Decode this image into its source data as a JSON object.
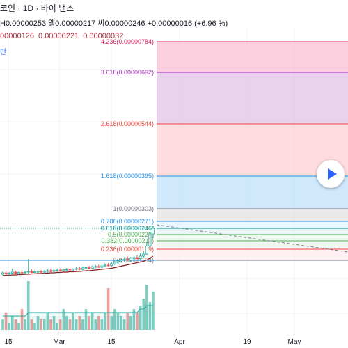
{
  "header": {
    "title": "코인 · 1D · 바이 낸스",
    "ohlc": {
      "high": "H0.00000253",
      "open_close_label": "엘0.00000217",
      "close": "씨0.00000246",
      "change": "+0.00000016 (+6.96 %)"
    },
    "ma_values": [
      "00000126",
      "0.00000221",
      "0.00000032"
    ],
    "indicator_label": "반"
  },
  "colors": {
    "up": "#26a69a",
    "down": "#ef5350",
    "ma": "#8b1a1a",
    "volume_up": "#7fcfc3",
    "volume_down": "#f29e9c",
    "accent": "#2962ff"
  },
  "play_button": {
    "icon": "play-icon"
  },
  "chart_data": {
    "type": "candlestick",
    "x_ticks": [
      "15",
      "Mar",
      "15",
      "Apr",
      "19",
      "May"
    ],
    "fib_levels": [
      {
        "ratio": "4.236",
        "price": "0.00000784",
        "color": "#e91e63",
        "fill": "#f8bbd0"
      },
      {
        "ratio": "3.618",
        "price": "0.00000692",
        "color": "#9c27b0",
        "fill": "#e1bee7"
      },
      {
        "ratio": "2.618",
        "price": "0.00000544",
        "color": "#f44336",
        "fill": "#ffcdd2"
      },
      {
        "ratio": "1.618",
        "price": "0.00000395",
        "color": "#2196f3",
        "fill": "#bbdefb"
      },
      {
        "ratio": "1",
        "price": "0.00000303",
        "color": "#787b86",
        "fill": "#e0e0e0"
      },
      {
        "ratio": "0.786",
        "price": "0.00000271",
        "color": "#2196f3",
        "fill": "#e3f2fd"
      },
      {
        "ratio": "0.618",
        "price": "0.00000246",
        "color": "#009688",
        "fill": "#e0f2f1"
      },
      {
        "ratio": "0.5",
        "price": "0.00000228",
        "color": "#4caf50",
        "fill": "#e8f5e9"
      },
      {
        "ratio": "0.382",
        "price": "0.00000211",
        "color": "#4caf50",
        "fill": "#e8f5e9"
      },
      {
        "ratio": "0.236",
        "price": "0.00000189",
        "color": "#f44336",
        "fill": "#ffebee"
      },
      {
        "ratio": "0",
        "price": "0.00000154",
        "color": "#787b86",
        "fill": "#ffffff"
      }
    ],
    "candles": [
      {
        "o": 1.14,
        "h": 1.22,
        "l": 1.1,
        "c": 1.18
      },
      {
        "o": 1.18,
        "h": 1.24,
        "l": 1.12,
        "c": 1.15
      },
      {
        "o": 1.15,
        "h": 1.2,
        "l": 1.1,
        "c": 1.17
      },
      {
        "o": 1.17,
        "h": 1.3,
        "l": 1.15,
        "c": 1.2
      },
      {
        "o": 1.2,
        "h": 1.24,
        "l": 1.14,
        "c": 1.16
      },
      {
        "o": 1.16,
        "h": 1.22,
        "l": 1.12,
        "c": 1.19
      },
      {
        "o": 1.19,
        "h": 1.26,
        "l": 1.15,
        "c": 1.18
      },
      {
        "o": 1.18,
        "h": 1.23,
        "l": 1.14,
        "c": 1.2
      },
      {
        "o": 1.2,
        "h": 1.58,
        "l": 1.16,
        "c": 1.22
      },
      {
        "o": 1.22,
        "h": 1.28,
        "l": 1.17,
        "c": 1.19
      },
      {
        "o": 1.19,
        "h": 1.25,
        "l": 1.15,
        "c": 1.21
      },
      {
        "o": 1.21,
        "h": 1.27,
        "l": 1.17,
        "c": 1.22
      },
      {
        "o": 1.22,
        "h": 1.26,
        "l": 1.18,
        "c": 1.2
      },
      {
        "o": 1.2,
        "h": 1.25,
        "l": 1.16,
        "c": 1.23
      },
      {
        "o": 1.23,
        "h": 1.28,
        "l": 1.19,
        "c": 1.24
      },
      {
        "o": 1.24,
        "h": 1.29,
        "l": 1.2,
        "c": 1.22
      },
      {
        "o": 1.22,
        "h": 1.27,
        "l": 1.18,
        "c": 1.25
      },
      {
        "o": 1.25,
        "h": 1.3,
        "l": 1.21,
        "c": 1.26
      },
      {
        "o": 1.26,
        "h": 1.31,
        "l": 1.22,
        "c": 1.24
      },
      {
        "o": 1.24,
        "h": 1.29,
        "l": 1.21,
        "c": 1.27
      },
      {
        "o": 1.27,
        "h": 1.32,
        "l": 1.23,
        "c": 1.28
      },
      {
        "o": 1.28,
        "h": 1.33,
        "l": 1.24,
        "c": 1.26
      },
      {
        "o": 1.26,
        "h": 1.31,
        "l": 1.23,
        "c": 1.29
      },
      {
        "o": 1.29,
        "h": 1.34,
        "l": 1.25,
        "c": 1.3
      },
      {
        "o": 1.3,
        "h": 1.35,
        "l": 1.26,
        "c": 1.28
      },
      {
        "o": 1.28,
        "h": 1.36,
        "l": 1.25,
        "c": 1.32
      },
      {
        "o": 1.32,
        "h": 1.37,
        "l": 1.28,
        "c": 1.33
      },
      {
        "o": 1.33,
        "h": 1.38,
        "l": 1.29,
        "c": 1.31
      },
      {
        "o": 1.31,
        "h": 1.39,
        "l": 1.28,
        "c": 1.35
      },
      {
        "o": 1.35,
        "h": 1.4,
        "l": 1.31,
        "c": 1.36
      },
      {
        "o": 1.36,
        "h": 1.41,
        "l": 1.32,
        "c": 1.34
      },
      {
        "o": 1.34,
        "h": 1.43,
        "l": 1.31,
        "c": 1.38
      },
      {
        "o": 1.38,
        "h": 1.45,
        "l": 1.34,
        "c": 1.4
      },
      {
        "o": 1.4,
        "h": 1.46,
        "l": 1.36,
        "c": 1.39
      },
      {
        "o": 1.39,
        "h": 1.49,
        "l": 1.36,
        "c": 1.44
      },
      {
        "o": 1.44,
        "h": 1.54,
        "l": 1.4,
        "c": 1.48
      },
      {
        "o": 1.48,
        "h": 1.58,
        "l": 1.44,
        "c": 1.52
      },
      {
        "o": 1.52,
        "h": 1.6,
        "l": 1.47,
        "c": 1.55
      },
      {
        "o": 1.55,
        "h": 1.63,
        "l": 1.5,
        "c": 1.57
      },
      {
        "o": 1.57,
        "h": 1.65,
        "l": 1.52,
        "c": 1.54
      },
      {
        "o": 1.54,
        "h": 1.64,
        "l": 1.5,
        "c": 1.6
      },
      {
        "o": 1.6,
        "h": 1.68,
        "l": 1.55,
        "c": 1.62
      },
      {
        "o": 1.62,
        "h": 1.7,
        "l": 1.57,
        "c": 1.59
      },
      {
        "o": 1.59,
        "h": 1.74,
        "l": 1.55,
        "c": 1.66
      },
      {
        "o": 1.66,
        "h": 1.8,
        "l": 1.62,
        "c": 1.72
      },
      {
        "o": 1.72,
        "h": 2.05,
        "l": 1.69,
        "c": 1.95
      },
      {
        "o": 1.95,
        "h": 2.35,
        "l": 1.9,
        "c": 2.3
      },
      {
        "o": 2.3,
        "h": 2.53,
        "l": 2.17,
        "c": 2.46
      }
    ],
    "ma": [
      1.1,
      1.11,
      1.11,
      1.12,
      1.12,
      1.13,
      1.13,
      1.14,
      1.14,
      1.15,
      1.15,
      1.16,
      1.16,
      1.17,
      1.17,
      1.18,
      1.18,
      1.19,
      1.19,
      1.2,
      1.2,
      1.21,
      1.21,
      1.22,
      1.22,
      1.23,
      1.24,
      1.24,
      1.25,
      1.26,
      1.27,
      1.28,
      1.29,
      1.3,
      1.31,
      1.33,
      1.35,
      1.37,
      1.39,
      1.41,
      1.43,
      1.45,
      1.47,
      1.49,
      1.51,
      1.55,
      1.6,
      1.66
    ],
    "volume": [
      3,
      5,
      2,
      4,
      3,
      2,
      6,
      3,
      14,
      3,
      2,
      4,
      3,
      3,
      5,
      3,
      4,
      2,
      3,
      6,
      4,
      3,
      5,
      3,
      4,
      3,
      6,
      4,
      5,
      3,
      4,
      3,
      5,
      12,
      4,
      6,
      5,
      4,
      3,
      5,
      4,
      6,
      5,
      7,
      9,
      13,
      8,
      11
    ],
    "volume_ma": [
      4,
      4,
      4,
      4,
      4,
      4,
      4,
      4,
      5,
      5,
      5,
      5,
      5,
      5,
      5,
      5,
      5,
      5,
      5,
      5,
      5,
      5,
      5,
      5,
      5,
      5,
      5,
      5,
      5,
      5,
      5,
      5,
      5,
      5,
      5,
      5,
      5,
      5,
      5,
      5,
      5,
      5,
      5,
      6,
      6,
      7,
      7,
      7
    ]
  }
}
